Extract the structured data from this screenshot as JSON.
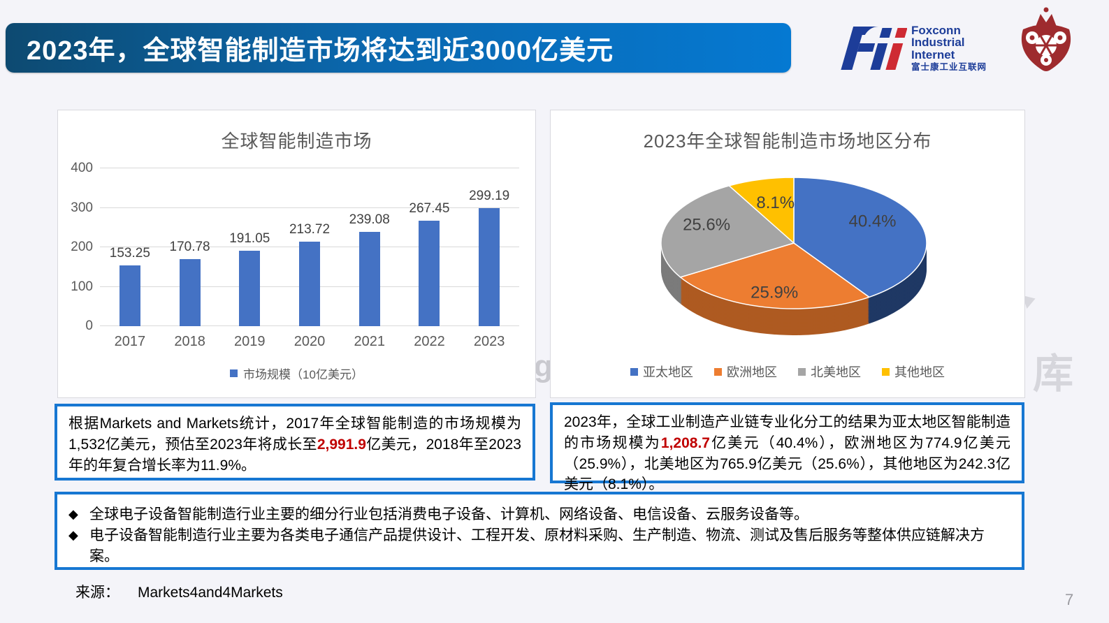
{
  "slide": {
    "title": "2023年，全球智能制造市场将达到近3000亿美元",
    "page_number": "7",
    "source": {
      "label": "来源：",
      "value": "Markets4and4Markets"
    },
    "watermark": {
      "char1": "库",
      "char2": "g"
    }
  },
  "logo": {
    "mark": "Fii",
    "lines": [
      "Foxconn",
      "Industrial",
      "Internet"
    ],
    "chinese": "富士康工业互联网",
    "brand_blue": "#1d3d99",
    "brand_red": "#ce2a33",
    "emblem_color": "#9e2b2e"
  },
  "colors": {
    "banner_gradient_left": "#0d4a71",
    "banner_gradient_right": "#0579d2",
    "info_box_border": "#1777d2",
    "emphasis_red": "#c00000",
    "axis_text": "#595959"
  },
  "chart_data": [
    {
      "type": "bar",
      "title": "全球智能制造市场",
      "categories": [
        "2017",
        "2018",
        "2019",
        "2020",
        "2021",
        "2022",
        "2023"
      ],
      "values": [
        153.25,
        170.78,
        191.05,
        213.72,
        239.08,
        267.45,
        299.19
      ],
      "value_labels": [
        "153.25",
        "170.78",
        "191.05",
        "213.72",
        "239.08",
        "267.45",
        "299.19"
      ],
      "legend": "市场规模（10亿美元）",
      "xlabel": "",
      "ylabel": "",
      "ylim": [
        0,
        400
      ],
      "yticks": [
        0,
        100,
        200,
        300,
        400
      ],
      "grid": true,
      "legend_position": "bottom",
      "bar_color": "#4472c4"
    },
    {
      "type": "pie",
      "title": "2023年全球智能制造市场地区分布",
      "labels": [
        "亚太地区",
        "欧洲地区",
        "北美地区",
        "其他地区"
      ],
      "values": [
        40.4,
        25.9,
        25.6,
        8.1
      ],
      "value_labels": [
        "40.4%",
        "25.9%",
        "25.6%",
        "8.1%"
      ],
      "colors": [
        "#4472c4",
        "#ed7d31",
        "#a5a5a5",
        "#ffc000"
      ],
      "side_colors": [
        "#1f3864",
        "#ae5a21",
        "#7b7b7b",
        "#bf9000"
      ],
      "effect": "3d",
      "legend_position": "bottom"
    }
  ],
  "info_boxes": {
    "box1": {
      "part1": "根据Markets and Markets统计，2017年全球智能制造的市场规模为1,532亿美元，预估至2023年将成长至",
      "em": "2,991.9",
      "part2": "亿美元，2018年至2023年的年复合增长率为11.9%。"
    },
    "box2": {
      "part1": "2023年，全球工业制造产业链专业化分工的结果为亚太地区智能制造的市场规模为",
      "em": "1,208.7",
      "part2": "亿美元（40.4%），欧洲地区为774.9亿美元（25.9%），北美地区为765.9亿美元（25.6%），其他地区为242.3亿美元（8.1%）。"
    },
    "bullets": {
      "marker": "◆",
      "items": [
        "全球电子设备智能制造行业主要的细分行业包括消费电子设备、计算机、网络设备、电信设备、云服务设备等。",
        "电子设备智能制造行业主要为各类电子通信产品提供设计、工程开发、原材料采购、生产制造、物流、测试及售后服务等整体供应链解决方案。"
      ]
    }
  }
}
